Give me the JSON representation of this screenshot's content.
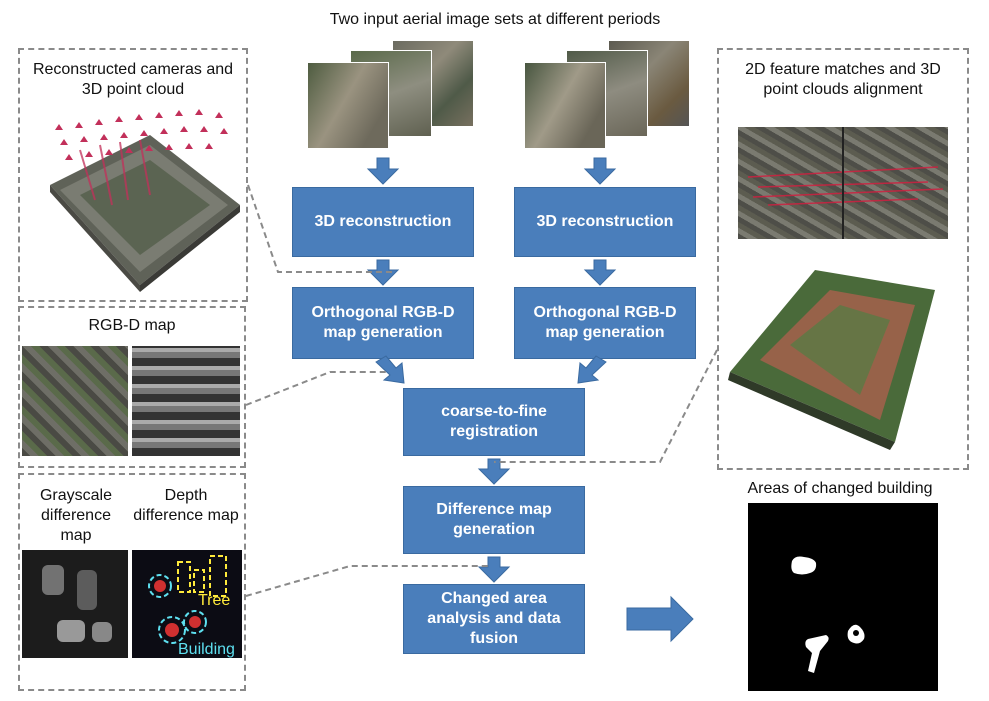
{
  "top_title": "Two input aerial image sets at different periods",
  "flow": {
    "recon_left": "3D reconstruction",
    "recon_right": "3D reconstruction",
    "ortho_left": "Orthogonal RGB-D map generation",
    "ortho_right": "Orthogonal RGB-D map generation",
    "registration": "coarse-to-fine registration",
    "difference": "Difference map generation",
    "changed": "Changed area analysis and data fusion"
  },
  "panels": {
    "cameras_title": "Reconstructed cameras and 3D point cloud",
    "rgbd_title": "RGB-D map",
    "gray_diff": "Grayscale difference map",
    "depth_diff": "Depth difference map",
    "tree_label": "Tree",
    "building_label": "Building",
    "matches_title": "2D feature matches and 3D point clouds alignment",
    "changed_title": "Areas of changed building"
  },
  "colors": {
    "box": "#4a7ebb",
    "tree": "#ffeb3b",
    "building": "#5ee0f0"
  }
}
